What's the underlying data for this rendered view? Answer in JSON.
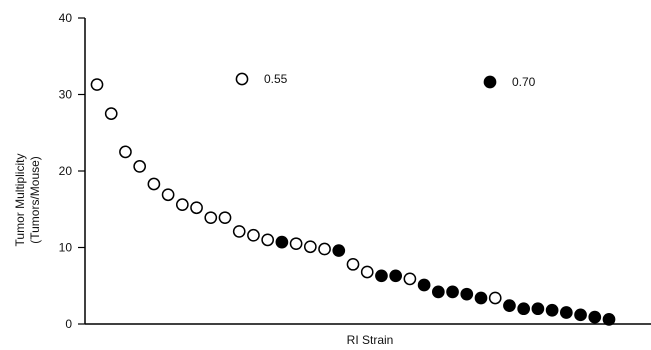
{
  "chart_data": {
    "type": "scatter",
    "title": "",
    "xlabel": "RI Strain",
    "ylabel_lines": [
      "Tumor Multiplicity",
      "(Tumors/Mouse)"
    ],
    "ylim": [
      0,
      40
    ],
    "yticks": [
      "0",
      "10",
      "20",
      "30",
      "40"
    ],
    "grid": false,
    "legend": [
      {
        "label": "0.55",
        "marker": "open-circle"
      },
      {
        "label": "0.70",
        "marker": "filled-circle"
      }
    ],
    "series": [
      {
        "name": "0.55",
        "marker": "open-circle",
        "points": [
          {
            "x": 1,
            "y": 31.3
          },
          {
            "x": 2,
            "y": 27.5
          },
          {
            "x": 3,
            "y": 22.5
          },
          {
            "x": 4,
            "y": 20.6
          },
          {
            "x": 5,
            "y": 18.3
          },
          {
            "x": 6,
            "y": 16.9
          },
          {
            "x": 7,
            "y": 15.6
          },
          {
            "x": 8,
            "y": 15.2
          },
          {
            "x": 9,
            "y": 13.9
          },
          {
            "x": 10,
            "y": 13.9
          },
          {
            "x": 11,
            "y": 12.1
          },
          {
            "x": 12,
            "y": 11.6
          },
          {
            "x": 13,
            "y": 11.0
          },
          {
            "x": 15,
            "y": 10.5
          },
          {
            "x": 16,
            "y": 10.1
          },
          {
            "x": 17,
            "y": 9.8
          },
          {
            "x": 19,
            "y": 7.8
          },
          {
            "x": 20,
            "y": 6.8
          },
          {
            "x": 23,
            "y": 5.9
          },
          {
            "x": 29,
            "y": 3.4
          }
        ]
      },
      {
        "name": "0.70",
        "marker": "filled-circle",
        "points": [
          {
            "x": 14,
            "y": 10.7
          },
          {
            "x": 18,
            "y": 9.6
          },
          {
            "x": 21,
            "y": 6.3
          },
          {
            "x": 22,
            "y": 6.3
          },
          {
            "x": 24,
            "y": 5.1
          },
          {
            "x": 25,
            "y": 4.2
          },
          {
            "x": 26,
            "y": 4.2
          },
          {
            "x": 27,
            "y": 3.9
          },
          {
            "x": 28,
            "y": 3.4
          },
          {
            "x": 30,
            "y": 2.4
          },
          {
            "x": 31,
            "y": 2.0
          },
          {
            "x": 32,
            "y": 2.0
          },
          {
            "x": 33,
            "y": 1.8
          },
          {
            "x": 34,
            "y": 1.5
          },
          {
            "x": 35,
            "y": 1.2
          },
          {
            "x": 36,
            "y": 0.9
          },
          {
            "x": 37,
            "y": 0.6
          }
        ]
      }
    ]
  }
}
